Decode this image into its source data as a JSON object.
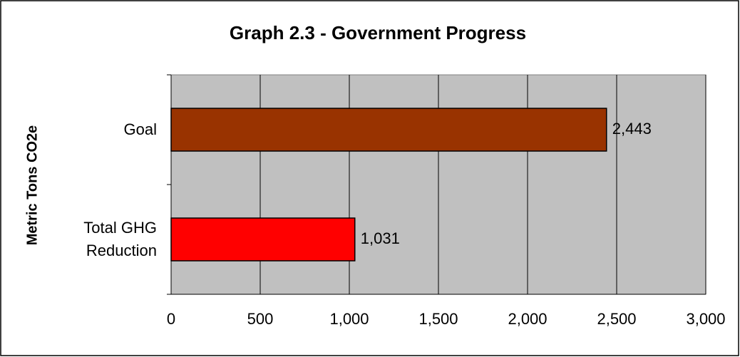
{
  "chart_data": {
    "type": "hbar",
    "title": "Graph 2.3 - Government Progress",
    "y_label": "Metric Tons CO2e",
    "categories": [
      "Goal",
      "Total GHG Reduction"
    ],
    "values": [
      2443,
      1031
    ],
    "value_labels": [
      "2,443",
      "1,031"
    ],
    "colors": [
      "#993300",
      "#ff0000"
    ],
    "xlim": [
      0,
      3000
    ],
    "xticks": [
      0,
      500,
      {
        "value": 1000,
        "label": "1,000"
      },
      {
        "value": 1500,
        "label": "1,500"
      },
      {
        "value": 2000,
        "label": "2,000"
      },
      {
        "value": 2500,
        "label": "2,500"
      },
      {
        "value": 3000,
        "label": "3,000"
      }
    ],
    "grid": true
  }
}
